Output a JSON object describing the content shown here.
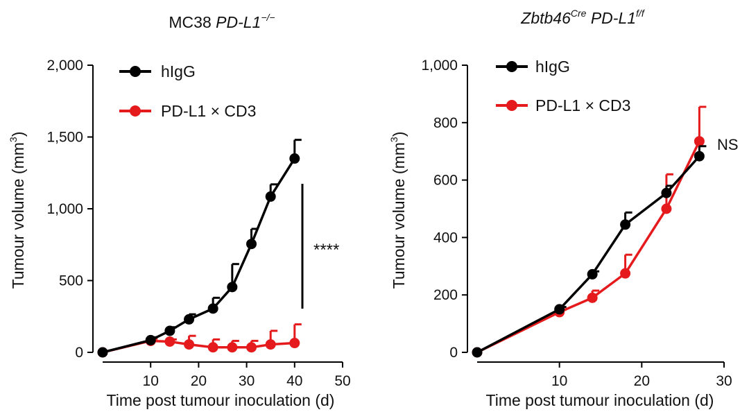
{
  "chart_data": [
    {
      "type": "line",
      "title": {
        "main": "MC38 ",
        "italic": "PD-L1",
        "sup": "−/−"
      },
      "xlabel": "Time post tumour inoculation (d)",
      "ylabel": {
        "main": "Tumour volume (mm",
        "sup": "3",
        "end": ")"
      },
      "xlim": [
        0,
        50
      ],
      "ylim": [
        0,
        2000
      ],
      "xticks": [
        10,
        20,
        30,
        40,
        50
      ],
      "yticks": [
        0,
        500,
        1000,
        1500,
        2000
      ],
      "ytick_labels": [
        "0",
        "500",
        "1,000",
        "1,500",
        "2,000"
      ],
      "significance": "****",
      "series": [
        {
          "name": "hIgG",
          "color": "#000000",
          "x": [
            0,
            10,
            14,
            18,
            23,
            27,
            31,
            35,
            40
          ],
          "y": [
            0,
            85,
            150,
            230,
            305,
            455,
            755,
            1085,
            1350
          ],
          "err": [
            0,
            20,
            25,
            35,
            75,
            160,
            105,
            85,
            130
          ]
        },
        {
          "name": "PD-L1 × CD3",
          "color": "#e41a1c",
          "x": [
            0,
            10,
            14,
            18,
            23,
            27,
            31,
            35,
            40
          ],
          "y": [
            0,
            80,
            75,
            55,
            35,
            35,
            35,
            55,
            65
          ],
          "err": [
            0,
            15,
            15,
            60,
            55,
            45,
            45,
            95,
            130
          ]
        }
      ]
    },
    {
      "type": "line",
      "title": {
        "italic": "Zbtb46",
        "sup": "Cre",
        "italic2": " PD-L1",
        "sup2": "f/f"
      },
      "xlabel": "Time post tumour inoculation (d)",
      "ylabel": {
        "main": "Tumour volume (mm",
        "sup": "3",
        "end": ")"
      },
      "xlim": [
        0,
        30
      ],
      "ylim": [
        0,
        1000
      ],
      "xticks": [
        10,
        20,
        30
      ],
      "yticks": [
        0,
        200,
        400,
        600,
        800,
        1000
      ],
      "ytick_labels": [
        "0",
        "200",
        "400",
        "600",
        "800",
        "1,000"
      ],
      "significance": "NS",
      "series": [
        {
          "name": "hIgG",
          "color": "#000000",
          "x": [
            0,
            10,
            14,
            18,
            23,
            27
          ],
          "y": [
            0,
            150,
            272,
            445,
            555,
            683
          ],
          "err": [
            0,
            8,
            10,
            42,
            25,
            35
          ]
        },
        {
          "name": "PD-L1 × CD3",
          "color": "#e41a1c",
          "x": [
            0,
            10,
            14,
            18,
            23,
            27
          ],
          "y": [
            0,
            140,
            190,
            275,
            500,
            735
          ],
          "err": [
            0,
            8,
            25,
            65,
            120,
            120
          ]
        }
      ]
    }
  ]
}
